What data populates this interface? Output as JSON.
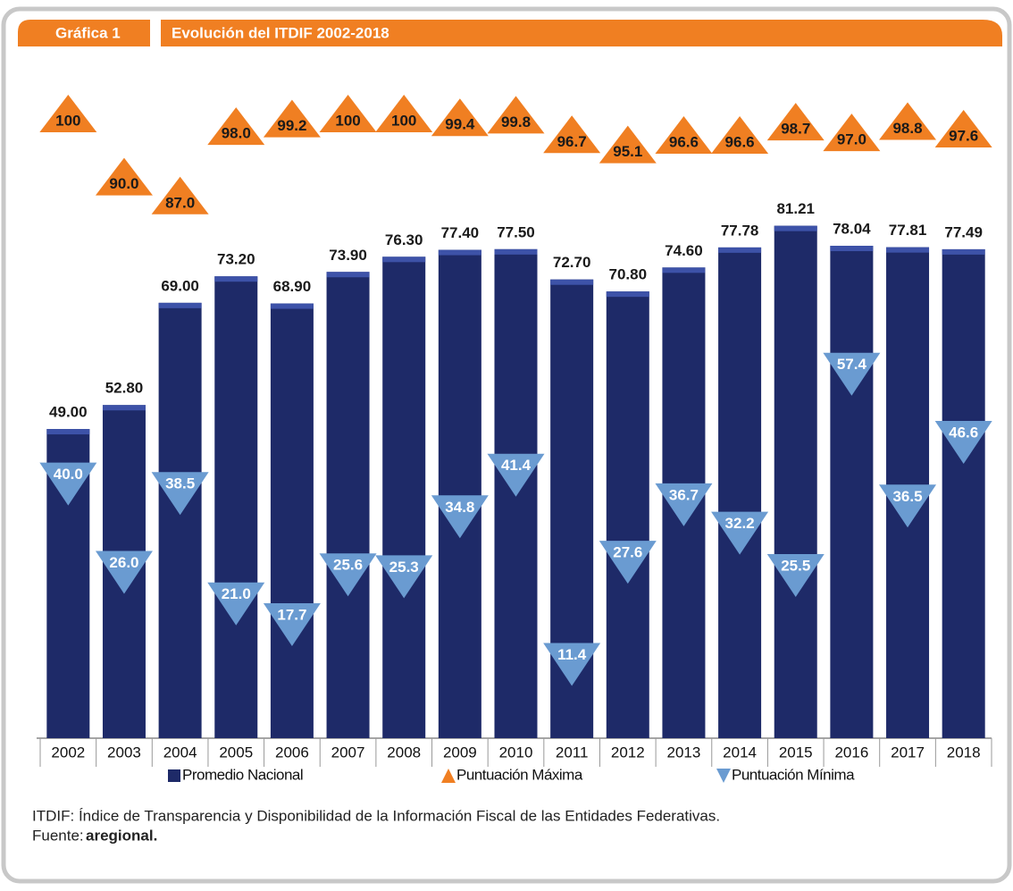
{
  "header": {
    "label": "Gráfica 1",
    "title": "Evolución del ITDIF 2002-2018"
  },
  "chart_data": {
    "type": "bar",
    "categories": [
      "2002",
      "2003",
      "2004",
      "2005",
      "2006",
      "2007",
      "2008",
      "2009",
      "2010",
      "2011",
      "2012",
      "2013",
      "2014",
      "2015",
      "2016",
      "2017",
      "2018"
    ],
    "ylim": [
      0,
      100
    ],
    "series": [
      {
        "name": "Promedio Nacional",
        "color": "#1e2a68",
        "kind": "bar",
        "values": [
          49.0,
          52.8,
          69.0,
          73.2,
          68.9,
          73.9,
          76.3,
          77.4,
          77.5,
          72.7,
          70.8,
          74.6,
          77.78,
          81.21,
          78.04,
          77.81,
          77.49
        ],
        "value_labels": [
          "49.00",
          "52.80",
          "69.00",
          "73.20",
          "68.90",
          "73.90",
          "76.30",
          "77.40",
          "77.50",
          "72.70",
          "70.80",
          "74.60",
          "77.78",
          "81.21",
          "78.04",
          "77.81",
          "77.49"
        ]
      },
      {
        "name": "Puntuación Máxima",
        "color": "#f07f22",
        "kind": "up-marker",
        "values": [
          100,
          90.0,
          87.0,
          98.0,
          99.2,
          100,
          100,
          99.4,
          99.8,
          96.7,
          95.1,
          96.6,
          96.6,
          98.7,
          97.0,
          98.8,
          97.6
        ],
        "value_labels": [
          "100",
          "90.0",
          "87.0",
          "98.0",
          "99.2",
          "100",
          "100",
          "99.4",
          "99.8",
          "96.7",
          "95.1",
          "96.6",
          "96.6",
          "98.7",
          "97.0",
          "98.8",
          "97.6"
        ]
      },
      {
        "name": "Puntuación Mínima",
        "color": "#6a9bd1",
        "kind": "down-marker",
        "values": [
          40.0,
          26.0,
          38.5,
          21.0,
          17.7,
          25.6,
          25.3,
          34.8,
          41.4,
          11.4,
          27.6,
          36.7,
          32.2,
          25.5,
          57.4,
          36.5,
          46.6
        ],
        "value_labels": [
          "40.0",
          "26.0",
          "38.5",
          "21.0",
          "17.7",
          "25.6",
          "25.3",
          "34.8",
          "41.4",
          "11.4",
          "27.6",
          "36.7",
          "32.2",
          "25.5",
          "57.4",
          "36.5",
          "46.6"
        ]
      }
    ]
  },
  "footnote": {
    "note": "ITDIF: Índice de Transparencia y Disponibilidad de la Información Fiscal de las Entidades Federativas.",
    "source_label": "Fuente:",
    "source": "aregional."
  }
}
